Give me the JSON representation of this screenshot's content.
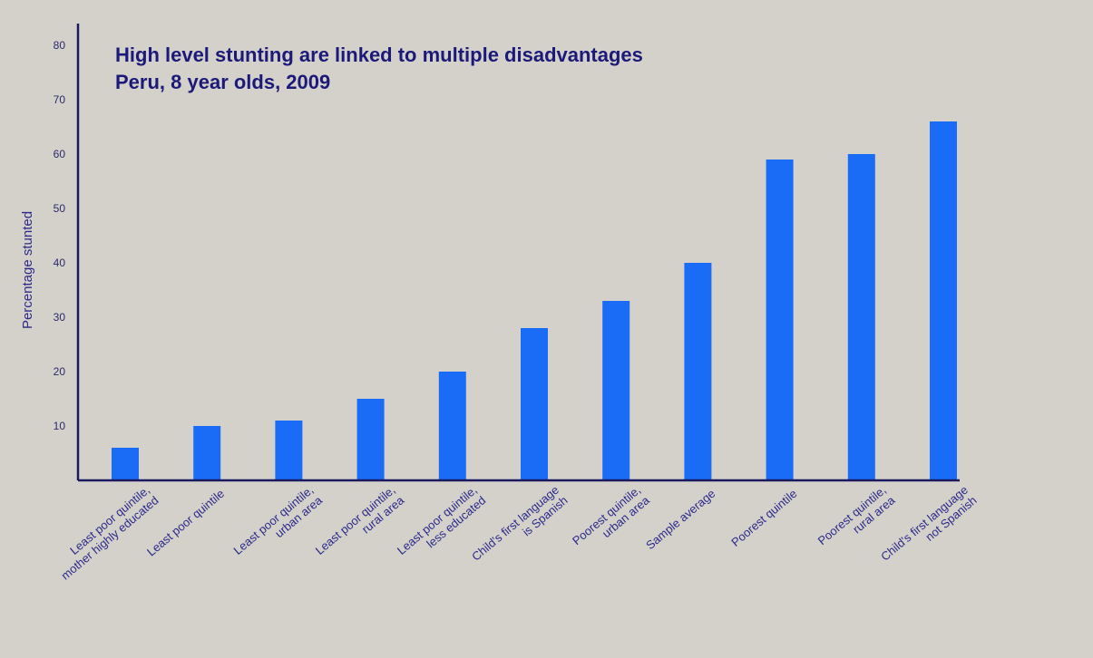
{
  "chart_data": {
    "type": "bar",
    "title": "High level stunting are linked to multiple disadvantages",
    "subtitle": "Peru, 8 year olds, 2009",
    "xlabel": "",
    "ylabel": "Percentage stunted",
    "ylim": [
      0,
      82
    ],
    "yticks": [
      10,
      20,
      30,
      40,
      50,
      60,
      70,
      80
    ],
    "grid": false,
    "legend": "none",
    "categories": [
      [
        "Least poor quintile,",
        "mother highly educated"
      ],
      [
        "Least poor quintile"
      ],
      [
        "Least poor quintile,",
        "urban area"
      ],
      [
        "Least poor quintile,",
        "rural area"
      ],
      [
        "Least poor quintile,",
        "less educated"
      ],
      [
        "Child's first language",
        "is Spanish"
      ],
      [
        "Poorest quintile,",
        "urban area"
      ],
      [
        "Sample average"
      ],
      [
        "Poorest quintile"
      ],
      [
        "Poorest quintile,",
        "rural area"
      ],
      [
        "Child's first language",
        "not Spanish"
      ]
    ],
    "values": [
      6,
      10,
      11,
      15,
      20,
      28,
      33,
      40,
      59,
      60,
      66
    ],
    "colors": {
      "bar": "#1a6cf6",
      "axis": "#1c1a5e",
      "title": "#1c1a78",
      "label": "#2c2a8a",
      "background": "#d4d1cb"
    }
  }
}
